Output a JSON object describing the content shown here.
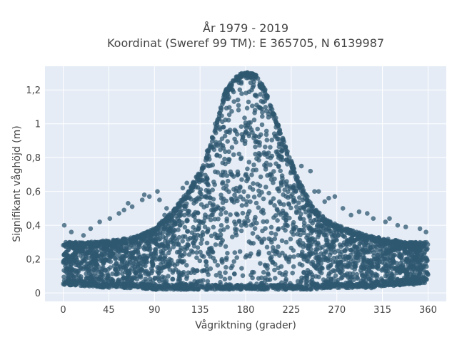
{
  "chart_data": {
    "type": "scatter",
    "title_line1": "År 1979 - 2019",
    "title_line2": "Koordinat (Sweref 99 TM): E 365705, N 6139987",
    "xlabel": "Vågriktning (grader)",
    "ylabel": "Signifikant våghöjd (m)",
    "xlim": [
      -18,
      378
    ],
    "ylim": [
      -0.05,
      1.34
    ],
    "x_ticks": [
      0,
      45,
      90,
      135,
      180,
      225,
      270,
      315,
      360
    ],
    "x_tick_labels": [
      "0",
      "45",
      "90",
      "135",
      "180",
      "225",
      "270",
      "315",
      "360"
    ],
    "y_ticks": [
      0,
      0.2,
      0.4,
      0.6,
      0.8,
      1.0,
      1.2
    ],
    "y_tick_labels": [
      "0",
      "0,2",
      "0,4",
      "0,6",
      "0,8",
      "1",
      "1,2"
    ],
    "grid": true,
    "legend": "none",
    "marker_color": "#2f5870",
    "plot_background": "#e5ecf6",
    "envelope": {
      "x": [
        0,
        20,
        45,
        70,
        90,
        110,
        125,
        140,
        150,
        160,
        170,
        180,
        190,
        200,
        210,
        220,
        230,
        245,
        260,
        280,
        300,
        320,
        340,
        360
      ],
      "y_min": [
        0.05,
        0.04,
        0.03,
        0.03,
        0.02,
        0.02,
        0.02,
        0.02,
        0.02,
        0.02,
        0.02,
        0.02,
        0.02,
        0.02,
        0.02,
        0.02,
        0.02,
        0.02,
        0.03,
        0.03,
        0.03,
        0.04,
        0.05,
        0.06
      ],
      "y_max": [
        0.3,
        0.3,
        0.31,
        0.33,
        0.38,
        0.5,
        0.62,
        0.78,
        0.98,
        1.2,
        1.28,
        1.31,
        1.29,
        1.2,
        1.03,
        0.86,
        0.7,
        0.52,
        0.43,
        0.38,
        0.34,
        0.32,
        0.3,
        0.3
      ]
    },
    "outliers": [
      {
        "x": 1,
        "y": 0.4
      },
      {
        "x": 8,
        "y": 0.36
      },
      {
        "x": 20,
        "y": 0.34
      },
      {
        "x": 27,
        "y": 0.38
      },
      {
        "x": 36,
        "y": 0.42
      },
      {
        "x": 46,
        "y": 0.44
      },
      {
        "x": 55,
        "y": 0.47
      },
      {
        "x": 60,
        "y": 0.49
      },
      {
        "x": 64,
        "y": 0.53
      },
      {
        "x": 68,
        "y": 0.51
      },
      {
        "x": 78,
        "y": 0.55
      },
      {
        "x": 80,
        "y": 0.58
      },
      {
        "x": 85,
        "y": 0.57
      },
      {
        "x": 93,
        "y": 0.6
      },
      {
        "x": 95,
        "y": 0.55
      },
      {
        "x": 100,
        "y": 0.46
      },
      {
        "x": 102,
        "y": 0.5
      },
      {
        "x": 118,
        "y": 0.62
      },
      {
        "x": 122,
        "y": 0.65
      },
      {
        "x": 128,
        "y": 0.65
      },
      {
        "x": 138,
        "y": 0.74
      },
      {
        "x": 142,
        "y": 0.84
      },
      {
        "x": 147,
        "y": 0.92
      },
      {
        "x": 150,
        "y": 1.0
      },
      {
        "x": 210,
        "y": 0.98
      },
      {
        "x": 216,
        "y": 0.84
      },
      {
        "x": 225,
        "y": 0.78
      },
      {
        "x": 235,
        "y": 0.75
      },
      {
        "x": 244,
        "y": 0.72
      },
      {
        "x": 248,
        "y": 0.6
      },
      {
        "x": 252,
        "y": 0.6
      },
      {
        "x": 258,
        "y": 0.54
      },
      {
        "x": 262,
        "y": 0.56
      },
      {
        "x": 268,
        "y": 0.57
      },
      {
        "x": 276,
        "y": 0.5
      },
      {
        "x": 284,
        "y": 0.46
      },
      {
        "x": 292,
        "y": 0.48
      },
      {
        "x": 300,
        "y": 0.47
      },
      {
        "x": 306,
        "y": 0.44
      },
      {
        "x": 318,
        "y": 0.42
      },
      {
        "x": 322,
        "y": 0.44
      },
      {
        "x": 330,
        "y": 0.4
      },
      {
        "x": 338,
        "y": 0.39
      },
      {
        "x": 352,
        "y": 0.38
      },
      {
        "x": 358,
        "y": 0.36
      },
      {
        "x": 304,
        "y": 0.03
      },
      {
        "x": 8,
        "y": 0.06
      },
      {
        "x": 346,
        "y": 0.05
      }
    ]
  }
}
